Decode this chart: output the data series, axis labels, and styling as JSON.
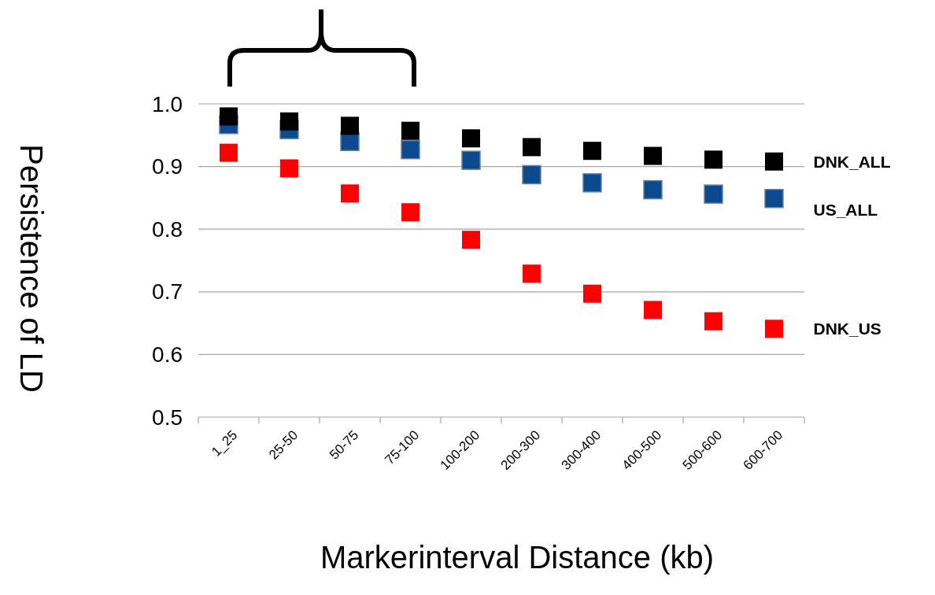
{
  "chart_data": {
    "type": "scatter",
    "xlabel": "Markerinterval Distance (kb)",
    "ylabel": "Persistence of LD",
    "categories": [
      "1_25",
      "25-50",
      "50-75",
      "75-100",
      "100-200",
      "200-300",
      "300-400",
      "400-500",
      "500-600",
      "600-700"
    ],
    "series": [
      {
        "name": "DNK_ALL",
        "color": "#000000",
        "values": [
          0.98,
          0.972,
          0.965,
          0.957,
          0.945,
          0.931,
          0.925,
          0.917,
          0.911,
          0.908
        ]
      },
      {
        "name": "US_ALL",
        "color": "#0b4a8f",
        "values": [
          0.967,
          0.959,
          0.94,
          0.927,
          0.91,
          0.887,
          0.874,
          0.863,
          0.856,
          0.849
        ]
      },
      {
        "name": "DNK_US",
        "color": "#ff0000",
        "values": [
          0.922,
          0.897,
          0.857,
          0.827,
          0.783,
          0.729,
          0.697,
          0.671,
          0.653,
          0.641
        ]
      }
    ],
    "ylim": [
      0.5,
      1.0
    ],
    "yticks": [
      {
        "value": 0.5,
        "label": "0.5"
      },
      {
        "value": 0.6,
        "label": "0.6"
      },
      {
        "value": 0.7,
        "label": "0.7"
      },
      {
        "value": 0.8,
        "label": "0.8"
      },
      {
        "value": 0.9,
        "label": "0.9"
      },
      {
        "value": 1.0,
        "label": "1.0"
      }
    ],
    "grid": "y",
    "marker": "square"
  }
}
